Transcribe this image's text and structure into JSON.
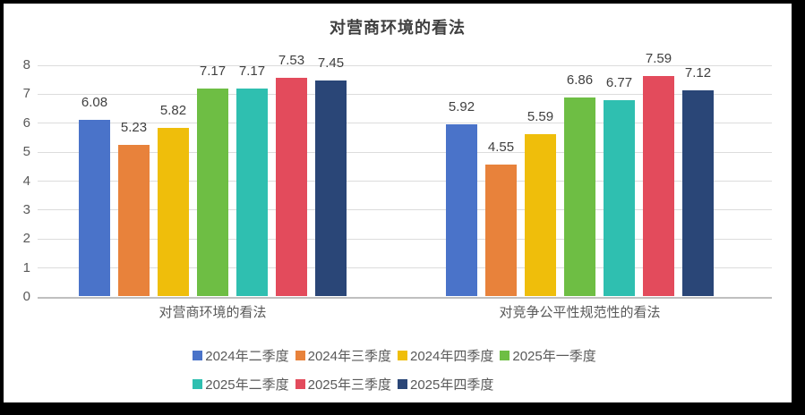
{
  "chart_data": {
    "type": "bar",
    "title": "对营商环境的看法",
    "categories": [
      "对营商环境的看法",
      "对竞争公平性规范性的看法"
    ],
    "series": [
      {
        "name": "2024年二季度",
        "color": "#4A73C9",
        "values": [
          6.08,
          5.92
        ]
      },
      {
        "name": "2024年三季度",
        "color": "#E8823B",
        "values": [
          5.23,
          4.55
        ]
      },
      {
        "name": "2024年四季度",
        "color": "#EFBE0B",
        "values": [
          5.82,
          5.59
        ]
      },
      {
        "name": "2025年一季度",
        "color": "#6EBE44",
        "values": [
          7.17,
          6.86
        ]
      },
      {
        "name": "2025年二季度",
        "color": "#2FBFB0",
        "values": [
          7.17,
          6.77
        ]
      },
      {
        "name": "2025年三季度",
        "color": "#E34B5C",
        "values": [
          7.53,
          7.59
        ]
      },
      {
        "name": "2025年四季度",
        "color": "#2A4677",
        "values": [
          7.45,
          7.12
        ]
      }
    ],
    "ylim": [
      0,
      8
    ],
    "y_ticks": [
      0,
      1,
      2,
      3,
      4,
      5,
      6,
      7,
      8
    ],
    "grid": true,
    "legend_position": "bottom",
    "legend_rows": [
      4,
      3
    ],
    "value_label_decimals": 2
  },
  "colors": {
    "background": "#FFFFFF",
    "frame": "#000000",
    "grid": "#DCDCDC",
    "axis_line": "#BFBFBF",
    "tick_label": "#595959",
    "data_label": "#404040",
    "title": "#3F3F3F",
    "legend_text": "#595959"
  }
}
